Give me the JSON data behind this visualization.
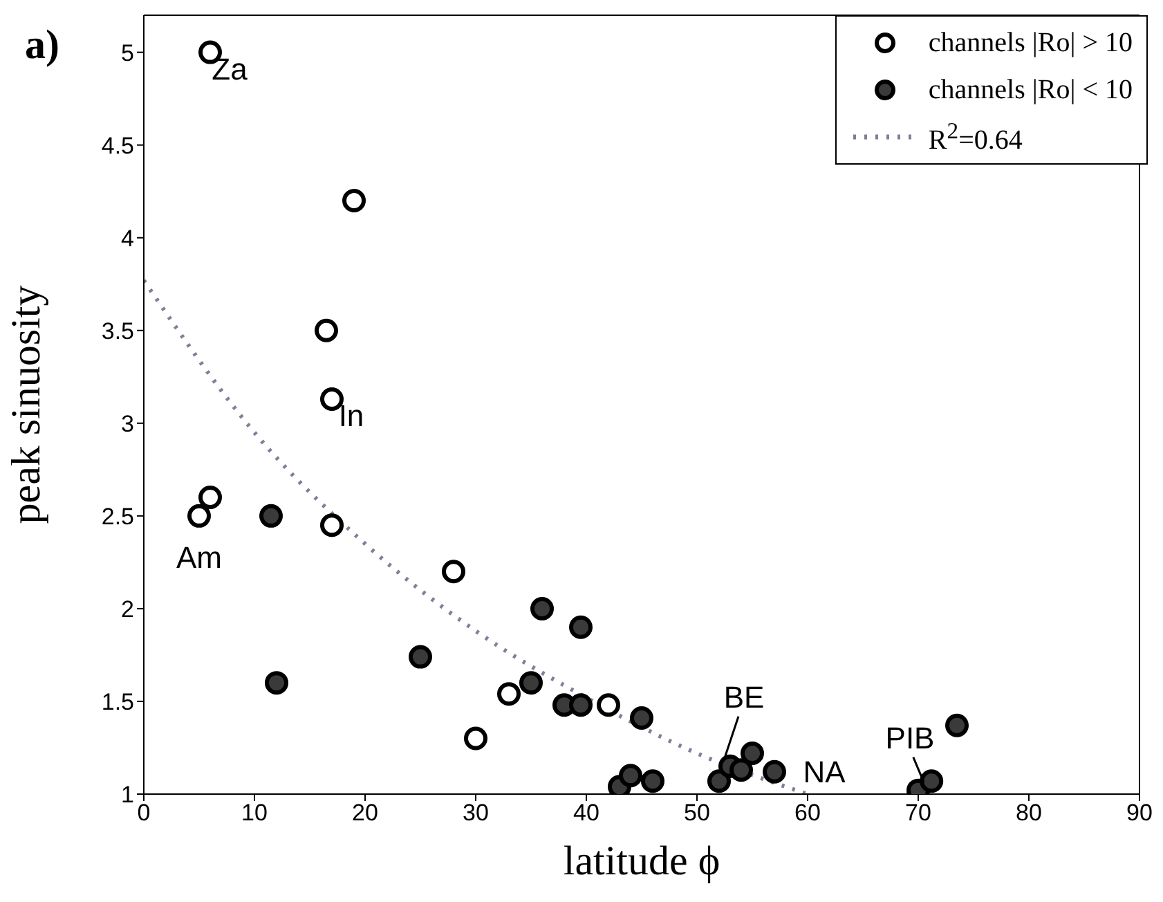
{
  "chart_data": {
    "type": "scatter",
    "xlabel": "latitude ϕ",
    "ylabel": "peak sinuosity",
    "xlim": [
      0,
      90
    ],
    "xticks": [
      0,
      10,
      20,
      30,
      40,
      50,
      60,
      70,
      80,
      90
    ],
    "ylim": [
      1,
      5.2
    ],
    "yticks": [
      1,
      1.5,
      2,
      2.5,
      3,
      3.5,
      4,
      4.5,
      5
    ],
    "grid": false,
    "legend": "top right",
    "marker": "circle",
    "series": [
      {
        "name": "channels |Ro| > 10",
        "color": "#ffffff",
        "x": [
          6,
          19,
          16.5,
          17,
          6,
          5,
          17,
          28,
          33,
          30,
          42
        ],
        "values": [
          5.0,
          4.2,
          3.5,
          3.13,
          2.6,
          2.5,
          2.45,
          2.2,
          1.54,
          1.3,
          1.48
        ]
      },
      {
        "name": "channels |Ro| < 10",
        "color": "#3a3a3a",
        "x": [
          11.5,
          12,
          25,
          36,
          39.5,
          35,
          38,
          39.5,
          45,
          43,
          44,
          46,
          52,
          53,
          54,
          55,
          57,
          70,
          71.2,
          73.5
        ],
        "values": [
          2.5,
          1.6,
          1.74,
          2.0,
          1.9,
          1.6,
          1.48,
          1.48,
          1.41,
          1.04,
          1.1,
          1.07,
          1.07,
          1.15,
          1.13,
          1.22,
          1.12,
          1.02,
          1.07,
          1.37
        ]
      },
      {
        "name": "R$^{2}$=0.64",
        "type": "line",
        "color": "#7f7f9a",
        "line_style": "dotted",
        "marker": "none",
        "x": [
          0,
          10,
          20,
          30,
          40,
          50,
          60
        ],
        "values": [
          3.77,
          2.95,
          2.35,
          1.88,
          1.52,
          1.22,
          1.0
        ]
      }
    ],
    "annotations": [
      "a)",
      {
        "text": "Za",
        "x": 6,
        "y": 5.0
      },
      {
        "text": "In",
        "x": 17,
        "y": 3.13
      },
      {
        "text": "Am",
        "x": 5,
        "y": 2.5
      },
      {
        "text": "BE",
        "x": 53,
        "y": 1.15
      },
      {
        "text": "NA",
        "x": 57,
        "y": 1.12
      },
      {
        "text": "PIB",
        "x": 70,
        "y": 1.02
      }
    ]
  }
}
